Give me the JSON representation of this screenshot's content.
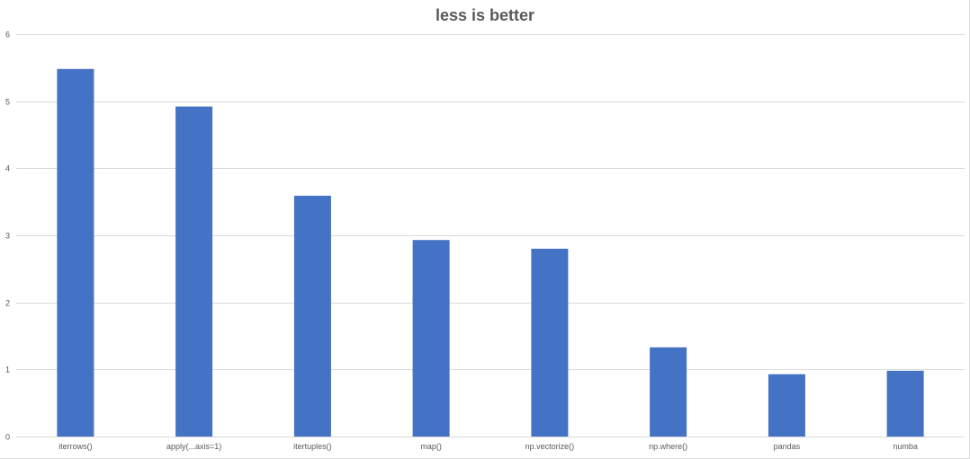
{
  "chart_data": {
    "type": "bar",
    "title": "less is better",
    "xlabel": "",
    "ylabel": "",
    "categories": [
      "iterrows()",
      "apply(...axis=1)",
      "itertuples()",
      "map()",
      "np.vectorize()",
      "np.where()",
      "pandas",
      "numba"
    ],
    "values": [
      5.48,
      4.92,
      3.59,
      2.93,
      2.8,
      1.33,
      0.93,
      0.98
    ],
    "ylim": [
      0,
      6
    ],
    "yticks": [
      "0",
      "1",
      "2",
      "3",
      "4",
      "5",
      "6"
    ],
    "grid": true,
    "legend": "none",
    "colors": {
      "bar": "#4472c4",
      "grid": "#d9d9d9",
      "text": "#595959"
    }
  }
}
